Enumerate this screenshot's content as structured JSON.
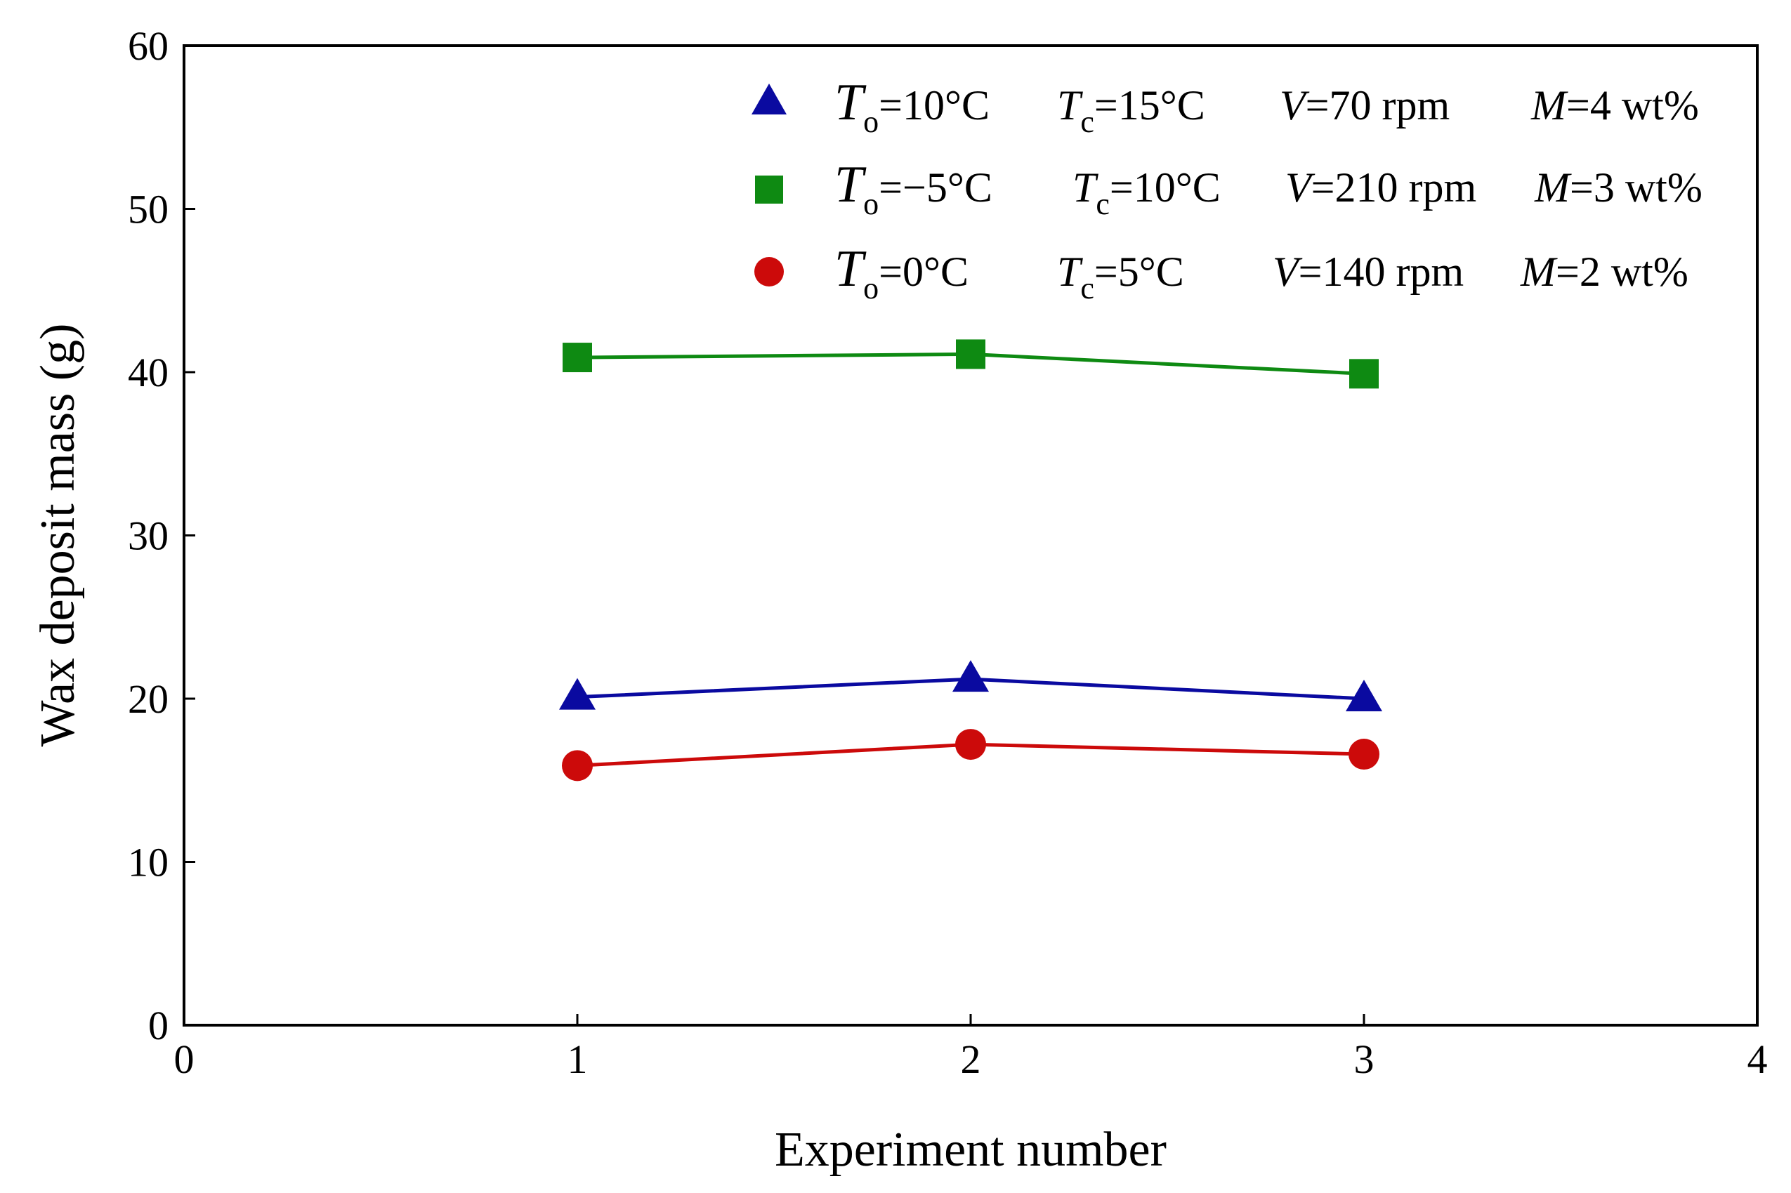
{
  "chart_data": {
    "type": "line",
    "title": "",
    "xlabel": "Experiment number",
    "ylabel": "Wax deposit mass (g)",
    "xlim": [
      0,
      4
    ],
    "ylim": [
      0,
      60
    ],
    "x_ticks": [
      "0",
      "1",
      "2",
      "3",
      "4"
    ],
    "y_ticks": [
      "0",
      "10",
      "20",
      "30",
      "40",
      "50",
      "60"
    ],
    "grid": false,
    "legend_position": "top-right",
    "x": [
      1,
      2,
      3
    ],
    "series": [
      {
        "name": "To=10°C Tc=15°C V=70 rpm M=4 wt%",
        "marker": "triangle",
        "color": "#0A0AA0",
        "values": [
          20.1,
          21.2,
          20.0
        ],
        "label_parts": {
          "t_symbol": "T",
          "t_sub": "o",
          "t_value": "=10°C",
          "tc_symbol": "T",
          "tc_sub": "c",
          "tc_value": "=15°C",
          "v_symbol": "V",
          "v_value": "=70 rpm",
          "m_symbol": "M",
          "m_value": "=4 wt%"
        }
      },
      {
        "name": "To=−5°C Tc=10°C V=210 rpm M=3 wt%",
        "marker": "square",
        "color": "#0E8A12",
        "values": [
          40.9,
          41.1,
          39.9
        ],
        "label_parts": {
          "t_symbol": "T",
          "t_sub": "o",
          "t_value": "=−5°C",
          "tc_symbol": "T",
          "tc_sub": "c",
          "tc_value": "=10°C",
          "v_symbol": "V",
          "v_value": "=210 rpm",
          "m_symbol": "M",
          "m_value": "=3 wt%"
        }
      },
      {
        "name": "To=0°C Tc=5°C V=140 rpm M=2 wt%",
        "marker": "circle",
        "color": "#CC0A0A",
        "values": [
          15.9,
          17.2,
          16.6
        ],
        "label_parts": {
          "t_symbol": "T",
          "t_sub": "o",
          "t_value": "=0°C",
          "tc_symbol": "T",
          "tc_sub": "c",
          "tc_value": "=5°C",
          "v_symbol": "V",
          "v_value": "=140 rpm",
          "m_symbol": "M",
          "m_value": "=2 wt%"
        }
      }
    ]
  }
}
